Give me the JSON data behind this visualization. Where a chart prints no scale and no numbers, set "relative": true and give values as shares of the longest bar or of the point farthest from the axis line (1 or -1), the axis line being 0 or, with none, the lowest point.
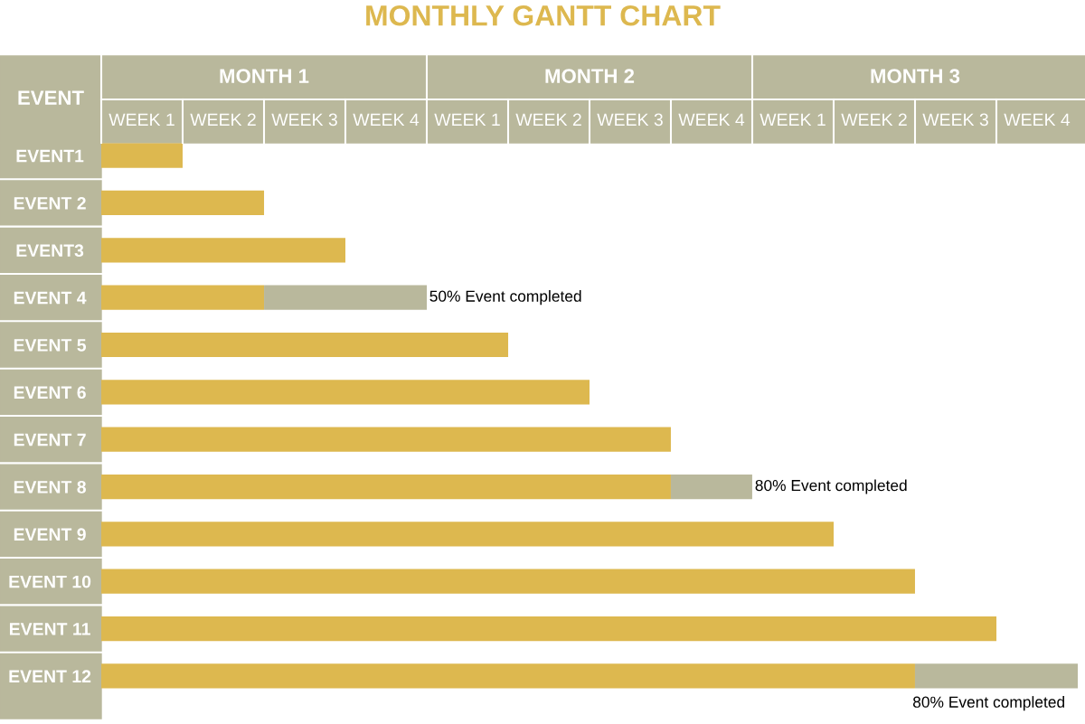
{
  "chart_data": {
    "type": "bar",
    "orientation": "horizontal",
    "stacked": true,
    "relative": true,
    "title": "MONTHLY GANTT CHART",
    "ylabel": "EVENT",
    "categories": [
      "EVENT1",
      "EVENT 2",
      "EVENT3",
      "EVENT 4",
      "EVENT 5",
      "EVENT 6",
      "EVENT 7",
      "EVENT 8",
      "EVENT 9",
      "EVENT 10",
      "EVENT 11",
      "EVENT 12"
    ],
    "series": [
      {
        "color": "#ddb84f",
        "values": [
          0.0833,
          0.1667,
          0.25,
          0.1667,
          0.4167,
          0.5,
          0.5833,
          0.5833,
          0.75,
          0.8333,
          0.9167,
          0.8333
        ]
      },
      {
        "color": "#b9b89c",
        "values": [
          null,
          null,
          null,
          0.1667,
          null,
          null,
          null,
          0.0833,
          null,
          null,
          null,
          0.1667
        ]
      }
    ],
    "annotations": [
      "MONTH 1",
      "WEEK 1",
      "WEEK 2",
      "WEEK 3",
      "WEEK 4",
      "MONTH 2",
      "WEEK 1",
      "WEEK 2",
      "WEEK 3",
      "WEEK 4",
      "MONTH 3",
      "WEEK 1",
      "WEEK 2",
      "WEEK 3",
      "WEEK 4",
      {
        "text": "50% Event completed",
        "x": 0.3333,
        "y": "EVENT 4"
      },
      {
        "text": "80% Event completed",
        "x": 0.6667,
        "y": "EVENT 8"
      },
      {
        "text": "80% Event completed",
        "x": 1,
        "y": "EVENT 12"
      }
    ]
  }
}
